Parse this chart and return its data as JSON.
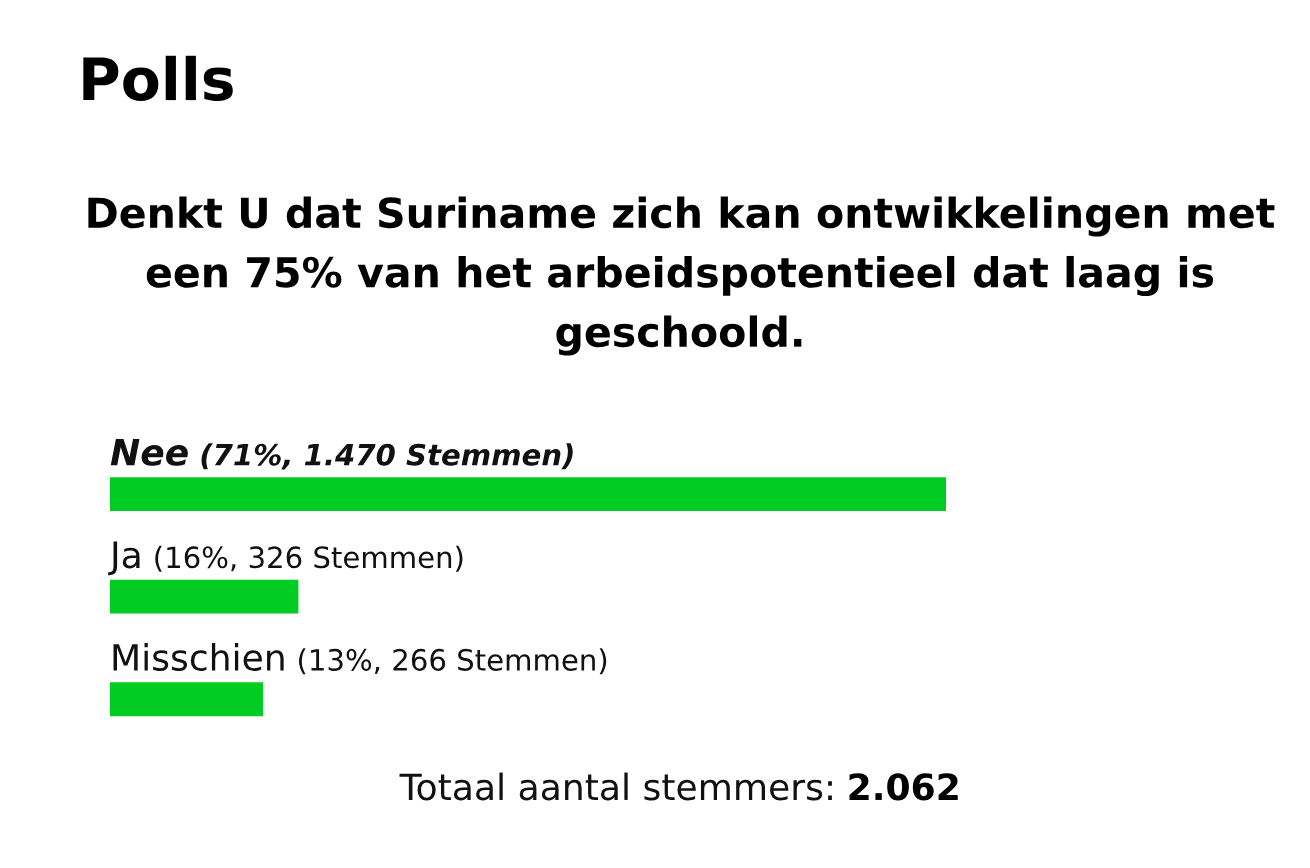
{
  "chart_data": {
    "type": "bar",
    "orientation": "horizontal",
    "title": "Polls",
    "subtitle": "Denkt U dat Suriname zich kan ontwikkelingen met een 75% van het arbeidspotentieel dat laag is geschoold.",
    "categories": [
      "Nee",
      "Ja",
      "Misschien"
    ],
    "values": [
      71,
      16,
      13
    ],
    "value_labels": [
      "(71%, 1.470 Stemmen)",
      "(16%, 326 Stemmen)",
      "(13%, 266 Stemmen)"
    ],
    "color": "#00cc22",
    "tick_labels": "y",
    "annotations": [
      "Totaal aantal stemmers: 2.062"
    ]
  }
}
